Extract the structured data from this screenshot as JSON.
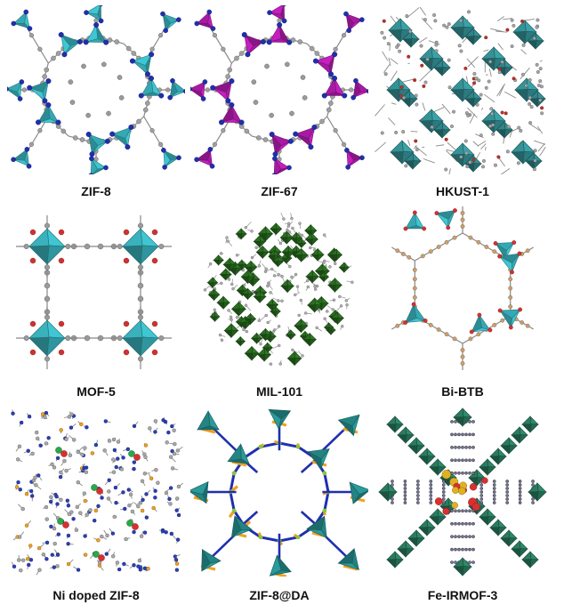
{
  "panels": [
    {
      "id": "zif8",
      "label": "ZIF-8",
      "style": "sodalite",
      "poly": "#3fc6d2",
      "node": "#1f2fb0"
    },
    {
      "id": "zif67",
      "label": "ZIF-67",
      "style": "sodalite",
      "poly": "#c41fc0",
      "node": "#1f2fb0"
    },
    {
      "id": "hkust1",
      "label": "HKUST-1",
      "style": "dense",
      "poly": "#3aa3a8",
      "node": "#c0302a"
    },
    {
      "id": "mof5",
      "label": "MOF-5",
      "style": "cubic",
      "poly": "#3fc6d2",
      "node": "#d23030"
    },
    {
      "id": "mil101",
      "label": "MIL-101",
      "style": "sphere",
      "poly": "#2f7a24",
      "node": "#999999"
    },
    {
      "id": "bibtb",
      "label": "Bi-BTB",
      "style": "hex",
      "poly": "#3fc6d2",
      "node": "#c9a070"
    },
    {
      "id": "nizif8",
      "label": "Ni doped ZIF-8",
      "style": "ball",
      "poly": "#2a3fb8",
      "node": "#f0a020"
    },
    {
      "id": "zif8da",
      "label": "ZIF-8@DA",
      "style": "stick",
      "poly": "#2a9a9a",
      "node": "#f0a020"
    },
    {
      "id": "feirmof3",
      "label": "Fe-IRMOF-3",
      "style": "star",
      "poly": "#2f8a6a",
      "node": "#d83030"
    }
  ]
}
